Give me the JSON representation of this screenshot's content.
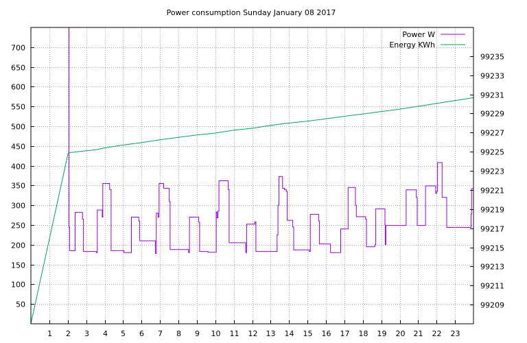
{
  "chart_data": {
    "type": "line",
    "title": "Power consumption Sunday January 08 2017",
    "x_ticks": [
      1,
      2,
      3,
      4,
      5,
      6,
      7,
      8,
      9,
      10,
      11,
      12,
      13,
      14,
      15,
      16,
      17,
      18,
      19,
      20,
      21,
      22,
      23
    ],
    "xlim": [
      0,
      24
    ],
    "ylim_left": [
      0,
      750
    ],
    "y_ticks_left": [
      50,
      100,
      150,
      200,
      250,
      300,
      350,
      400,
      450,
      500,
      550,
      600,
      650,
      700
    ],
    "ylim_right": [
      99207,
      99238
    ],
    "y_ticks_right": [
      99209,
      99211,
      99213,
      99215,
      99217,
      99219,
      99221,
      99223,
      99225,
      99227,
      99229,
      99231,
      99233,
      99235
    ],
    "grid": true,
    "legend_position": "top-right",
    "colors": {
      "power": "#9400d3",
      "energy": "#009e73",
      "grid": "#a0a0a0"
    },
    "series": [
      {
        "name": "Power W",
        "axis": "left",
        "color": "#9400d3",
        "step": true,
        "points": [
          [
            2.05,
            750
          ],
          [
            2.07,
            245
          ],
          [
            2.1,
            185
          ],
          [
            2.35,
            185
          ],
          [
            2.4,
            282
          ],
          [
            2.75,
            282
          ],
          [
            2.8,
            265
          ],
          [
            2.85,
            183
          ],
          [
            3.5,
            183
          ],
          [
            3.55,
            180
          ],
          [
            3.6,
            288
          ],
          [
            3.85,
            288
          ],
          [
            3.87,
            270
          ],
          [
            3.9,
            355
          ],
          [
            4.25,
            355
          ],
          [
            4.27,
            340
          ],
          [
            4.35,
            185
          ],
          [
            5.0,
            185
          ],
          [
            5.05,
            180
          ],
          [
            5.4,
            180
          ],
          [
            5.45,
            270
          ],
          [
            5.8,
            270
          ],
          [
            5.85,
            260
          ],
          [
            5.9,
            210
          ],
          [
            6.7,
            210
          ],
          [
            6.75,
            178
          ],
          [
            6.8,
            280
          ],
          [
            6.9,
            270
          ],
          [
            6.95,
            355
          ],
          [
            7.15,
            355
          ],
          [
            7.2,
            343
          ],
          [
            7.45,
            343
          ],
          [
            7.5,
            310
          ],
          [
            7.55,
            188
          ],
          [
            8.5,
            188
          ],
          [
            8.55,
            180
          ],
          [
            8.6,
            270
          ],
          [
            9.05,
            270
          ],
          [
            9.1,
            257
          ],
          [
            9.15,
            183
          ],
          [
            9.55,
            183
          ],
          [
            9.6,
            181
          ],
          [
            10.0,
            181
          ],
          [
            10.05,
            283
          ],
          [
            10.1,
            268
          ],
          [
            10.15,
            285
          ],
          [
            10.2,
            362
          ],
          [
            10.65,
            362
          ],
          [
            10.7,
            340
          ],
          [
            10.75,
            205
          ],
          [
            11.6,
            205
          ],
          [
            11.65,
            180
          ],
          [
            11.7,
            252
          ],
          [
            12.1,
            252
          ],
          [
            12.15,
            258
          ],
          [
            12.2,
            183
          ],
          [
            13.3,
            183
          ],
          [
            13.35,
            225
          ],
          [
            13.4,
            300
          ],
          [
            13.45,
            373
          ],
          [
            13.6,
            373
          ],
          [
            13.65,
            343
          ],
          [
            13.75,
            340
          ],
          [
            13.85,
            335
          ],
          [
            13.9,
            262
          ],
          [
            14.15,
            262
          ],
          [
            14.2,
            245
          ],
          [
            14.25,
            187
          ],
          [
            15.05,
            187
          ],
          [
            15.1,
            183
          ],
          [
            15.15,
            277
          ],
          [
            15.55,
            277
          ],
          [
            15.6,
            260
          ],
          [
            15.65,
            202
          ],
          [
            16.2,
            202
          ],
          [
            16.25,
            180
          ],
          [
            16.75,
            180
          ],
          [
            16.8,
            240
          ],
          [
            17.15,
            240
          ],
          [
            17.2,
            345
          ],
          [
            17.55,
            345
          ],
          [
            17.6,
            300
          ],
          [
            17.65,
            271
          ],
          [
            18.1,
            271
          ],
          [
            18.15,
            265
          ],
          [
            18.2,
            195
          ],
          [
            18.6,
            195
          ],
          [
            18.65,
            200
          ],
          [
            18.7,
            291
          ],
          [
            19.15,
            291
          ],
          [
            19.2,
            250
          ],
          [
            19.22,
            200
          ],
          [
            19.25,
            249
          ],
          [
            20.3,
            249
          ],
          [
            20.35,
            339
          ],
          [
            20.85,
            339
          ],
          [
            20.9,
            320
          ],
          [
            20.95,
            249
          ],
          [
            21.35,
            249
          ],
          [
            21.4,
            349
          ],
          [
            21.9,
            349
          ],
          [
            21.95,
            330
          ],
          [
            22.0,
            335
          ],
          [
            22.05,
            408
          ],
          [
            22.25,
            408
          ],
          [
            22.3,
            320
          ],
          [
            22.5,
            320
          ],
          [
            22.55,
            244
          ],
          [
            23.85,
            244
          ],
          [
            23.87,
            278
          ],
          [
            23.9,
            342
          ],
          [
            24.0,
            342
          ]
        ]
      },
      {
        "name": "Energy KWh",
        "axis": "right",
        "color": "#009e73",
        "step": false,
        "points": [
          [
            0.0,
            99207.0
          ],
          [
            2.0,
            99224.7
          ],
          [
            2.05,
            99224.9
          ],
          [
            3.0,
            99225.1
          ],
          [
            3.5,
            99225.2
          ],
          [
            4.0,
            99225.4
          ],
          [
            5.0,
            99225.7
          ],
          [
            6.0,
            99225.95
          ],
          [
            7.0,
            99226.25
          ],
          [
            8.0,
            99226.5
          ],
          [
            9.0,
            99226.75
          ],
          [
            10.0,
            99226.95
          ],
          [
            11.0,
            99227.25
          ],
          [
            12.0,
            99227.45
          ],
          [
            13.0,
            99227.75
          ],
          [
            14.0,
            99228.0
          ],
          [
            15.0,
            99228.2
          ],
          [
            16.0,
            99228.45
          ],
          [
            17.0,
            99228.7
          ],
          [
            18.0,
            99228.95
          ],
          [
            19.0,
            99229.2
          ],
          [
            20.0,
            99229.45
          ],
          [
            21.0,
            99229.75
          ],
          [
            22.0,
            99230.05
          ],
          [
            23.0,
            99230.35
          ],
          [
            24.0,
            99230.65
          ]
        ]
      }
    ]
  }
}
